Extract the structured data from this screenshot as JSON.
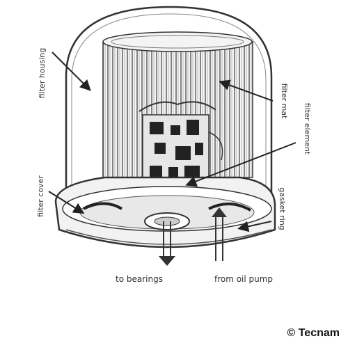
{
  "labels": {
    "filter_housing": "filter housing",
    "filter_mat": "filter mat",
    "filter_element": "filter element",
    "filter_cover": "filter cover",
    "gasket_ring": "gasket ring",
    "to_bearings": "to bearings",
    "from_oil_pump": "from oil pump"
  },
  "credit": "© Tecnam"
}
